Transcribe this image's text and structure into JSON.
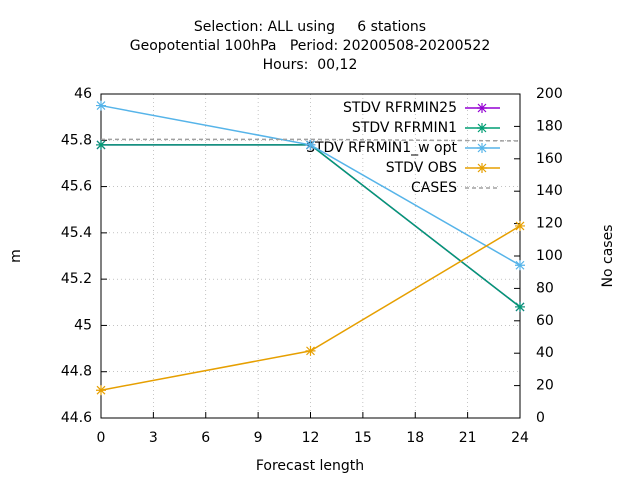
{
  "chart_data": {
    "type": "line",
    "title": [
      "Selection: ALL using     6 stations",
      "Geopotential 100hPa   Period: 20200508-20200522",
      "Hours:  00,12"
    ],
    "xlabel": "Forecast length",
    "ylabel": "m",
    "y2label": "No cases",
    "x": [
      0,
      12,
      24
    ],
    "xlim": [
      0,
      24
    ],
    "xticks": [
      0,
      3,
      6,
      9,
      12,
      15,
      18,
      21,
      24
    ],
    "ylim": [
      44.6,
      46
    ],
    "yticks": [
      44.6,
      44.8,
      45,
      45.2,
      45.4,
      45.6,
      45.8,
      46
    ],
    "y2lim": [
      0,
      200
    ],
    "y2ticks": [
      0,
      20,
      40,
      60,
      80,
      100,
      120,
      140,
      160,
      180,
      200
    ],
    "grid": true,
    "legend": "top-right",
    "series": [
      {
        "name": "STDV RFRMIN25",
        "color": "#9400d3",
        "values": [
          45.78,
          45.78,
          45.08
        ]
      },
      {
        "name": "STDV RFRMIN1",
        "color": "#009e73",
        "values": [
          45.78,
          45.78,
          45.08
        ]
      },
      {
        "name": "STDV RFRMIN1_w opt",
        "color": "#56b4e9",
        "values": [
          45.95,
          45.78,
          45.26
        ]
      },
      {
        "name": "STDV OBS",
        "color": "#e69f00",
        "values": [
          44.72,
          44.89,
          45.43
        ]
      },
      {
        "name": "CASES",
        "color": "#a0a0a0",
        "axis": "y2",
        "dash": true,
        "values": [
          172,
          172,
          171
        ]
      }
    ]
  }
}
